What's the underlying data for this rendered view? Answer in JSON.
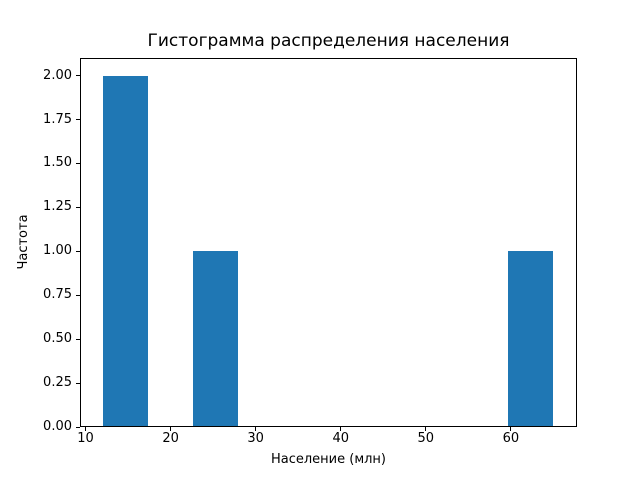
{
  "chart_data": {
    "type": "bar",
    "subtype": "histogram",
    "title": "Гистограмма распределения населения",
    "xlabel": "Население (млн)",
    "ylabel": "Частота",
    "bin_edges": [
      12.0,
      17.3,
      22.6,
      27.9,
      33.2,
      38.5,
      43.8,
      49.1,
      54.4,
      59.7,
      65.0
    ],
    "counts": [
      2,
      0,
      1,
      0,
      0,
      0,
      0,
      0,
      0,
      1
    ],
    "bar_color": "#1f77b4",
    "axes_color": "#000000",
    "background_color": "#ffffff",
    "grid": false,
    "legend_position": "none",
    "xlim": [
      9.35,
      67.65
    ],
    "ylim": [
      0,
      2.1
    ],
    "xticks": {
      "values": [
        10,
        20,
        30,
        40,
        50,
        60
      ],
      "labels": [
        "10",
        "20",
        "30",
        "40",
        "50",
        "60"
      ]
    },
    "yticks": {
      "values": [
        0,
        0.25,
        0.5,
        0.75,
        1.0,
        1.25,
        1.5,
        1.75,
        2.0
      ],
      "labels": [
        "0.00",
        "0.25",
        "0.50",
        "0.75",
        "1.00",
        "1.25",
        "1.50",
        "1.75",
        "2.00"
      ]
    }
  }
}
